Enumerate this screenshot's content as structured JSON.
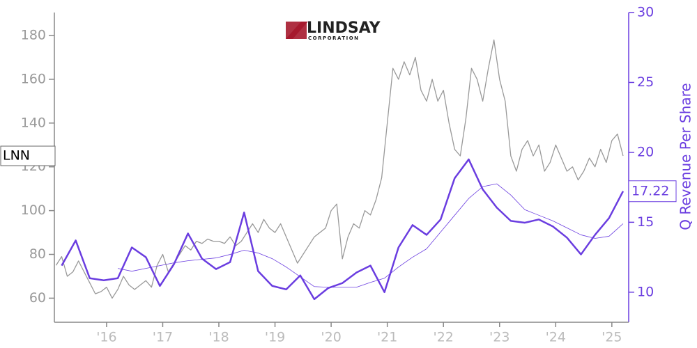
{
  "chart_data": {
    "type": "line",
    "logo": {
      "name": "LINDSAY",
      "tagline": "CORPORATION"
    },
    "y2label": "Q Revenue Per Share",
    "xlim": [
      2015.07,
      2025.3
    ],
    "xticks": [
      {
        "value": 2016,
        "label": "'16"
      },
      {
        "value": 2017,
        "label": "'17"
      },
      {
        "value": 2018,
        "label": "'18"
      },
      {
        "value": 2019,
        "label": "'19"
      },
      {
        "value": 2020,
        "label": "'20"
      },
      {
        "value": 2021,
        "label": "'21"
      },
      {
        "value": 2022,
        "label": "'22"
      },
      {
        "value": 2023,
        "label": "'23"
      },
      {
        "value": 2024,
        "label": "'24"
      },
      {
        "value": 2025,
        "label": "'25"
      }
    ],
    "ylim": [
      49,
      190.5
    ],
    "yticks": [
      60,
      80,
      100,
      120,
      140,
      160,
      180
    ],
    "y2lim": [
      7.85,
      30
    ],
    "y2ticks": [
      10,
      15,
      20,
      25,
      30
    ],
    "series": [
      {
        "name": "LNN",
        "color": "#999999",
        "axis": "y",
        "x": [
          2015.1,
          2015.2,
          2015.3,
          2015.4,
          2015.5,
          2015.6,
          2015.8,
          2015.9,
          2016.0,
          2016.1,
          2016.2,
          2016.3,
          2016.4,
          2016.5,
          2016.6,
          2016.7,
          2016.8,
          2016.9,
          2017.0,
          2017.1,
          2017.2,
          2017.3,
          2017.4,
          2017.5,
          2017.6,
          2017.7,
          2017.8,
          2017.9,
          2018.0,
          2018.1,
          2018.2,
          2018.3,
          2018.4,
          2018.5,
          2018.6,
          2018.7,
          2018.8,
          2018.9,
          2019.0,
          2019.1,
          2019.2,
          2019.3,
          2019.4,
          2019.5,
          2019.6,
          2019.7,
          2019.8,
          2019.9,
          2020.0,
          2020.1,
          2020.2,
          2020.3,
          2020.4,
          2020.5,
          2020.6,
          2020.7,
          2020.8,
          2020.9,
          2021.0,
          2021.1,
          2021.2,
          2021.3,
          2021.4,
          2021.5,
          2021.6,
          2021.7,
          2021.8,
          2021.9,
          2022.0,
          2022.1,
          2022.2,
          2022.3,
          2022.4,
          2022.5,
          2022.6,
          2022.7,
          2022.8,
          2022.9,
          2023.0,
          2023.1,
          2023.2,
          2023.3,
          2023.4,
          2023.5,
          2023.6,
          2023.7,
          2023.8,
          2023.9,
          2024.0,
          2024.1,
          2024.2,
          2024.3,
          2024.4,
          2024.5,
          2024.6,
          2024.7,
          2024.8,
          2024.9,
          2025.0,
          2025.1,
          2025.2
        ],
        "values": [
          75,
          79,
          70,
          72,
          77,
          72,
          62,
          63,
          65,
          60,
          64,
          70,
          66,
          64,
          66,
          68,
          65,
          75,
          80,
          72,
          76,
          80,
          84,
          82,
          86,
          85,
          87,
          86,
          86,
          85,
          88,
          84,
          86,
          90,
          94,
          90,
          96,
          92,
          90,
          94,
          88,
          82,
          76,
          80,
          84,
          88,
          90,
          92,
          100,
          103,
          78,
          88,
          94,
          92,
          100,
          98,
          105,
          115,
          140,
          165,
          160,
          168,
          162,
          170,
          155,
          150,
          160,
          150,
          155,
          140,
          128,
          125,
          142,
          165,
          160,
          150,
          165,
          178,
          160,
          150,
          125,
          118,
          128,
          132,
          125,
          130,
          118,
          122,
          130,
          124,
          118,
          120,
          114,
          118,
          124,
          120,
          128,
          122,
          132,
          135,
          125
        ]
      },
      {
        "name": "Q Revenue Per Share",
        "color": "#6a3de0",
        "axis": "y2",
        "x": [
          2015.2,
          2015.45,
          2015.7,
          2015.95,
          2016.2,
          2016.45,
          2016.7,
          2016.95,
          2017.2,
          2017.45,
          2017.7,
          2017.95,
          2018.2,
          2018.45,
          2018.7,
          2018.95,
          2019.2,
          2019.45,
          2019.7,
          2019.95,
          2020.2,
          2020.45,
          2020.7,
          2020.95,
          2021.2,
          2021.45,
          2021.7,
          2021.95,
          2022.2,
          2022.45,
          2022.7,
          2022.95,
          2023.2,
          2023.45,
          2023.7,
          2023.95,
          2024.2,
          2024.45,
          2024.7,
          2024.95,
          2025.2
        ],
        "values": [
          11.9,
          13.7,
          11.0,
          10.85,
          11.0,
          13.2,
          12.5,
          10.45,
          12.0,
          14.2,
          12.4,
          11.65,
          12.15,
          15.7,
          11.5,
          10.45,
          10.2,
          11.2,
          9.5,
          10.3,
          10.65,
          11.4,
          11.9,
          10.0,
          13.2,
          14.8,
          14.1,
          15.2,
          18.15,
          19.5,
          17.35,
          16.05,
          15.1,
          14.97,
          15.2,
          14.7,
          13.9,
          12.7,
          14.1,
          15.3,
          17.22
        ],
        "value_labels": [
          null,
          null,
          null,
          null,
          null,
          null,
          null,
          null,
          null,
          null,
          null,
          null,
          null,
          null,
          null,
          null,
          null,
          null,
          null,
          null,
          null,
          null,
          null,
          null,
          null,
          null,
          null,
          null,
          null,
          null,
          null,
          null,
          null,
          null,
          null,
          null,
          null,
          null,
          null,
          null,
          "17.22"
        ]
      },
      {
        "color": "#6a3de0",
        "axis": "y2",
        "thin": true,
        "x": [
          2015.2,
          2015.45,
          2015.7,
          2015.95,
          2016.2,
          2016.45,
          2016.7,
          2016.95,
          2017.2,
          2017.45,
          2017.7,
          2017.95,
          2018.2,
          2018.45,
          2018.7,
          2018.95,
          2019.2,
          2019.45,
          2019.7,
          2019.95,
          2020.2,
          2020.45,
          2020.7,
          2020.95,
          2021.2,
          2021.45,
          2021.7,
          2021.95,
          2022.2,
          2022.45,
          2022.7,
          2022.95,
          2023.2,
          2023.45,
          2023.7,
          2023.95,
          2024.2,
          2024.45,
          2024.7,
          2024.95,
          2025.2
        ],
        "values": [
          null,
          null,
          null,
          null,
          11.7,
          11.5,
          11.7,
          11.9,
          12.1,
          12.25,
          12.35,
          12.45,
          12.7,
          13.0,
          12.8,
          12.4,
          11.8,
          11.1,
          10.4,
          10.35,
          10.35,
          10.35,
          10.7,
          11.0,
          11.8,
          12.5,
          13.1,
          14.3,
          15.5,
          16.7,
          17.55,
          17.75,
          16.95,
          15.9,
          15.5,
          15.1,
          14.6,
          14.1,
          13.85,
          14.0,
          14.9
        ]
      }
    ]
  }
}
